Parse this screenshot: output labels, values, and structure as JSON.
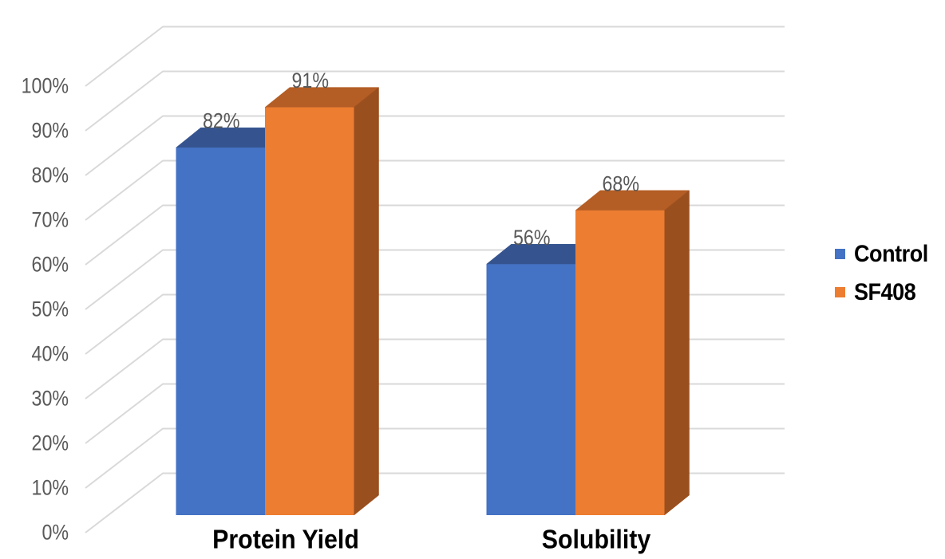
{
  "chart_data": {
    "type": "bar",
    "style": "3d-clustered-column",
    "title": "",
    "xlabel": "",
    "ylabel": "",
    "categories": [
      "Protein Yield",
      "Solubility"
    ],
    "series": [
      {
        "name": "Control",
        "values": [
          82,
          56
        ],
        "data_labels": [
          "82%",
          "56%"
        ],
        "color": "#4472C4",
        "top_color": "#35548F",
        "side_color": "#2E4A80"
      },
      {
        "name": "SF408",
        "values": [
          91,
          68
        ],
        "data_labels": [
          "91%",
          "68%"
        ],
        "color": "#ED7D31",
        "top_color": "#B45D24",
        "side_color": "#9A4F1E"
      }
    ],
    "ylim": [
      0,
      100
    ],
    "y_ticks": [
      "0%",
      "10%",
      "20%",
      "30%",
      "40%",
      "50%",
      "60%",
      "70%",
      "80%",
      "90%",
      "100%"
    ],
    "grid": true,
    "legend_position": "right"
  },
  "colors": {
    "background": "#FFFFFF",
    "gridline": "#D9D9D9",
    "tick_label": "#595959",
    "data_label": "#595959",
    "category_label": "#000000",
    "legend_text": "#000000"
  },
  "legend": {
    "items": [
      {
        "label": "Control",
        "color": "#4472C4"
      },
      {
        "label": "SF408",
        "color": "#ED7D31"
      }
    ]
  }
}
